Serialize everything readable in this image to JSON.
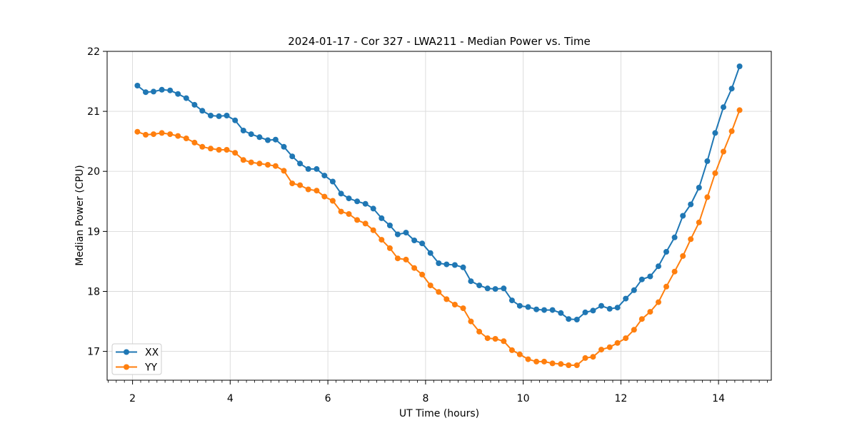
{
  "figure": {
    "title": "2024-01-17 - Cor 327 - LWA211 - Median Power vs. Time",
    "xlabel": "UT Time (hours)",
    "ylabel": "Median Power (CPU)"
  },
  "chart_data": {
    "type": "line",
    "title": "2024-01-17 - Cor 327 - LWA211 - Median Power vs. Time",
    "xlabel": "UT Time (hours)",
    "ylabel": "Median Power (CPU)",
    "xlim": [
      1.48,
      15.08
    ],
    "ylim": [
      16.52,
      22.0
    ],
    "xticks": [
      2,
      4,
      6,
      8,
      10,
      12,
      14
    ],
    "yticks": [
      17,
      18,
      19,
      20,
      21,
      22
    ],
    "x_minor_step_hours": 0.1667,
    "grid": true,
    "grid_color": "#d9d9d9",
    "legend_position": "lower left",
    "text_color": "#000000",
    "x": [
      2.1,
      2.27,
      2.43,
      2.6,
      2.77,
      2.93,
      3.1,
      3.27,
      3.43,
      3.6,
      3.77,
      3.93,
      4.1,
      4.27,
      4.43,
      4.6,
      4.77,
      4.93,
      5.1,
      5.27,
      5.43,
      5.6,
      5.77,
      5.93,
      6.1,
      6.27,
      6.43,
      6.6,
      6.77,
      6.93,
      7.1,
      7.27,
      7.43,
      7.6,
      7.77,
      7.93,
      8.1,
      8.27,
      8.43,
      8.6,
      8.77,
      8.93,
      9.1,
      9.27,
      9.43,
      9.6,
      9.77,
      9.93,
      10.1,
      10.27,
      10.43,
      10.6,
      10.77,
      10.93,
      11.1,
      11.27,
      11.43,
      11.6,
      11.77,
      11.93,
      12.1,
      12.27,
      12.43,
      12.6,
      12.77,
      12.93,
      13.1,
      13.27,
      13.43,
      13.6,
      13.77,
      13.93,
      14.1,
      14.27,
      14.43
    ],
    "series": [
      {
        "name": "XX",
        "color": "#1f77b4",
        "values": [
          21.43,
          21.32,
          21.33,
          21.36,
          21.35,
          21.29,
          21.22,
          21.11,
          21.01,
          20.93,
          20.92,
          20.93,
          20.85,
          20.68,
          20.62,
          20.57,
          20.52,
          20.53,
          20.41,
          20.25,
          20.13,
          20.04,
          20.04,
          19.93,
          19.83,
          19.63,
          19.55,
          19.5,
          19.46,
          19.38,
          19.22,
          19.1,
          18.95,
          18.98,
          18.85,
          18.8,
          18.64,
          18.47,
          18.45,
          18.44,
          18.4,
          18.17,
          18.1,
          18.05,
          18.04,
          18.05,
          17.85,
          17.76,
          17.74,
          17.7,
          17.69,
          17.69,
          17.64,
          17.54,
          17.53,
          17.65,
          17.68,
          17.76,
          17.71,
          17.73,
          17.88,
          18.02,
          18.2,
          18.25,
          18.42,
          18.66,
          18.9,
          19.26,
          19.45,
          19.73,
          20.17,
          20.64,
          21.07,
          21.38,
          21.75
        ]
      },
      {
        "name": "YY",
        "color": "#ff7f0e",
        "values": [
          20.66,
          20.61,
          20.62,
          20.64,
          20.62,
          20.59,
          20.55,
          20.48,
          20.41,
          20.38,
          20.36,
          20.36,
          20.31,
          20.19,
          20.15,
          20.13,
          20.11,
          20.09,
          20.01,
          19.8,
          19.77,
          19.7,
          19.68,
          19.58,
          19.51,
          19.33,
          19.29,
          19.19,
          19.13,
          19.02,
          18.86,
          18.72,
          18.55,
          18.53,
          18.39,
          18.28,
          18.1,
          17.99,
          17.87,
          17.78,
          17.72,
          17.5,
          17.33,
          17.22,
          17.21,
          17.17,
          17.02,
          16.95,
          16.87,
          16.83,
          16.83,
          16.8,
          16.79,
          16.77,
          16.77,
          16.89,
          16.91,
          17.03,
          17.07,
          17.14,
          17.22,
          17.36,
          17.54,
          17.66,
          17.82,
          18.08,
          18.33,
          18.59,
          18.87,
          19.15,
          19.57,
          19.97,
          20.33,
          20.67,
          21.02
        ]
      }
    ]
  }
}
